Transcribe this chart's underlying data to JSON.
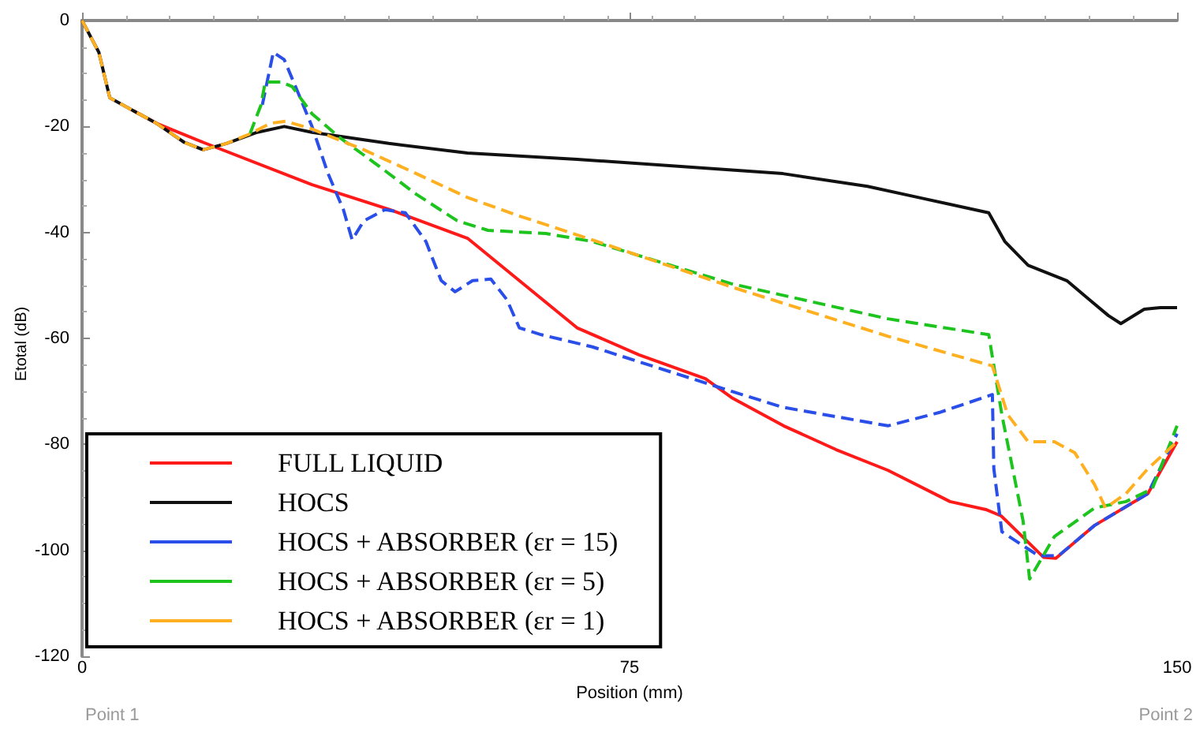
{
  "chart_data": {
    "type": "line",
    "xlabel": "Position (mm)",
    "ylabel": "Etotal (dB)",
    "xlim": [
      0,
      150
    ],
    "ylim": [
      -120,
      0
    ],
    "xticks": [
      0,
      75,
      150
    ],
    "yticks": [
      -120,
      -100,
      -80,
      -60,
      -40,
      -20,
      0
    ],
    "legend": "bottom left",
    "annotations": [
      "Point 1",
      "Point 2"
    ],
    "series": [
      {
        "name": "FULL LIQUID",
        "color": "#ff1a1a",
        "line_style": "solid",
        "x": [
          7,
          10.2,
          16.6,
          31.5,
          42.2,
          52.8,
          67.8,
          76.3,
          85.4,
          89,
          96.1,
          103.3,
          110.4,
          118.9,
          123.8,
          125.9,
          131.7,
          133.4,
          138.7,
          146,
          150
        ],
        "values": [
          -17,
          -19.4,
          -23,
          -31,
          -35.7,
          -41.1,
          -58,
          -63.1,
          -67.6,
          -71.2,
          -76.5,
          -81,
          -84.9,
          -90.8,
          -92.3,
          -93.5,
          -101.3,
          -101.5,
          -95.3,
          -89.3,
          -79.5
        ]
      },
      {
        "name": "HOCS",
        "color": "#111111",
        "line_style": "solid",
        "x": [
          0,
          2.3,
          3.8,
          7,
          10.2,
          14,
          16.6,
          19.8,
          24,
          27.7,
          31.5,
          42,
          52.8,
          67.8,
          96,
          107.6,
          114.6,
          124.2,
          126.4,
          129.6,
          134.9,
          138,
          140.6,
          142.3,
          145.5,
          147.7,
          150
        ],
        "values": [
          0,
          -6,
          -14.6,
          -17,
          -19.4,
          -23,
          -24.4,
          -23.2,
          -21.1,
          -20,
          -21.1,
          -23.2,
          -25,
          -26.2,
          -28.9,
          -31.3,
          -33.4,
          -36.3,
          -41.7,
          -46.2,
          -49.1,
          -52.7,
          -55.7,
          -57.2,
          -54.5,
          -54.2,
          -54.2
        ]
      },
      {
        "name": "HOCS + ABSORBER (εr = 15)",
        "color": "#2a4fe8",
        "line_style": "dashed",
        "x": [
          24.7,
          26.2,
          27.7,
          29.4,
          31.5,
          33.7,
          35.8,
          37,
          38.6,
          41.5,
          44.3,
          47.1,
          49.2,
          51.1,
          53.5,
          56,
          58.2,
          59.9,
          62.9,
          69.9,
          89,
          96,
          110.4,
          117.4,
          124.7,
          124.9,
          126,
          131,
          133.8,
          138.7,
          146,
          150
        ],
        "values": [
          -15.9,
          -6,
          -7.4,
          -13,
          -20,
          -28.9,
          -35.7,
          -41.4,
          -37.8,
          -35.7,
          -36.3,
          -41.7,
          -49.1,
          -51.2,
          -49.1,
          -48.8,
          -52.7,
          -58,
          -59.3,
          -61.6,
          -70,
          -73,
          -76.5,
          -74,
          -70.6,
          -84.6,
          -96.5,
          -101,
          -101,
          -95.3,
          -89.3,
          -78
        ]
      },
      {
        "name": "HOCS + ABSORBER (εr = 5)",
        "color": "#1ec41e",
        "line_style": "dashed",
        "x": [
          23,
          24.5,
          25.1,
          27.3,
          28.8,
          31.5,
          35.2,
          40,
          45.8,
          51.4,
          55.6,
          63.5,
          69.9,
          89,
          110.4,
          124.2,
          126,
          128.9,
          129.8,
          133.2,
          138.7,
          143,
          146.6,
          150
        ],
        "values": [
          -21.4,
          -16,
          -11.6,
          -11.6,
          -12.5,
          -17.6,
          -22,
          -26.8,
          -32.8,
          -37.8,
          -39.6,
          -40.2,
          -41.7,
          -49.7,
          -56.3,
          -59.3,
          -74.4,
          -94.4,
          -105.4,
          -97.4,
          -92,
          -90.8,
          -88.4,
          -76.5
        ]
      },
      {
        "name": "HOCS + ABSORBER (εr = 1)",
        "color": "#ffb020",
        "line_style": "dashed",
        "x": [
          0,
          2.3,
          3.8,
          7,
          10.2,
          14,
          16.6,
          19.8,
          23,
          25.8,
          27.9,
          31.5,
          38.6,
          45.8,
          52.8,
          59.9,
          69.9,
          89,
          110.4,
          124.7,
          126.8,
          129.6,
          133.2,
          136,
          138.7,
          140.2,
          143,
          146,
          150
        ],
        "values": [
          0,
          -6,
          -14.6,
          -17,
          -19.4,
          -23,
          -24.4,
          -23.2,
          -21.4,
          -19.4,
          -19,
          -20.5,
          -24.4,
          -28.9,
          -33.4,
          -36.9,
          -41.4,
          -50.3,
          -59.6,
          -65.2,
          -74.4,
          -79.5,
          -79.5,
          -81.6,
          -87.6,
          -92,
          -89.3,
          -84.6,
          -79.5
        ]
      }
    ]
  }
}
